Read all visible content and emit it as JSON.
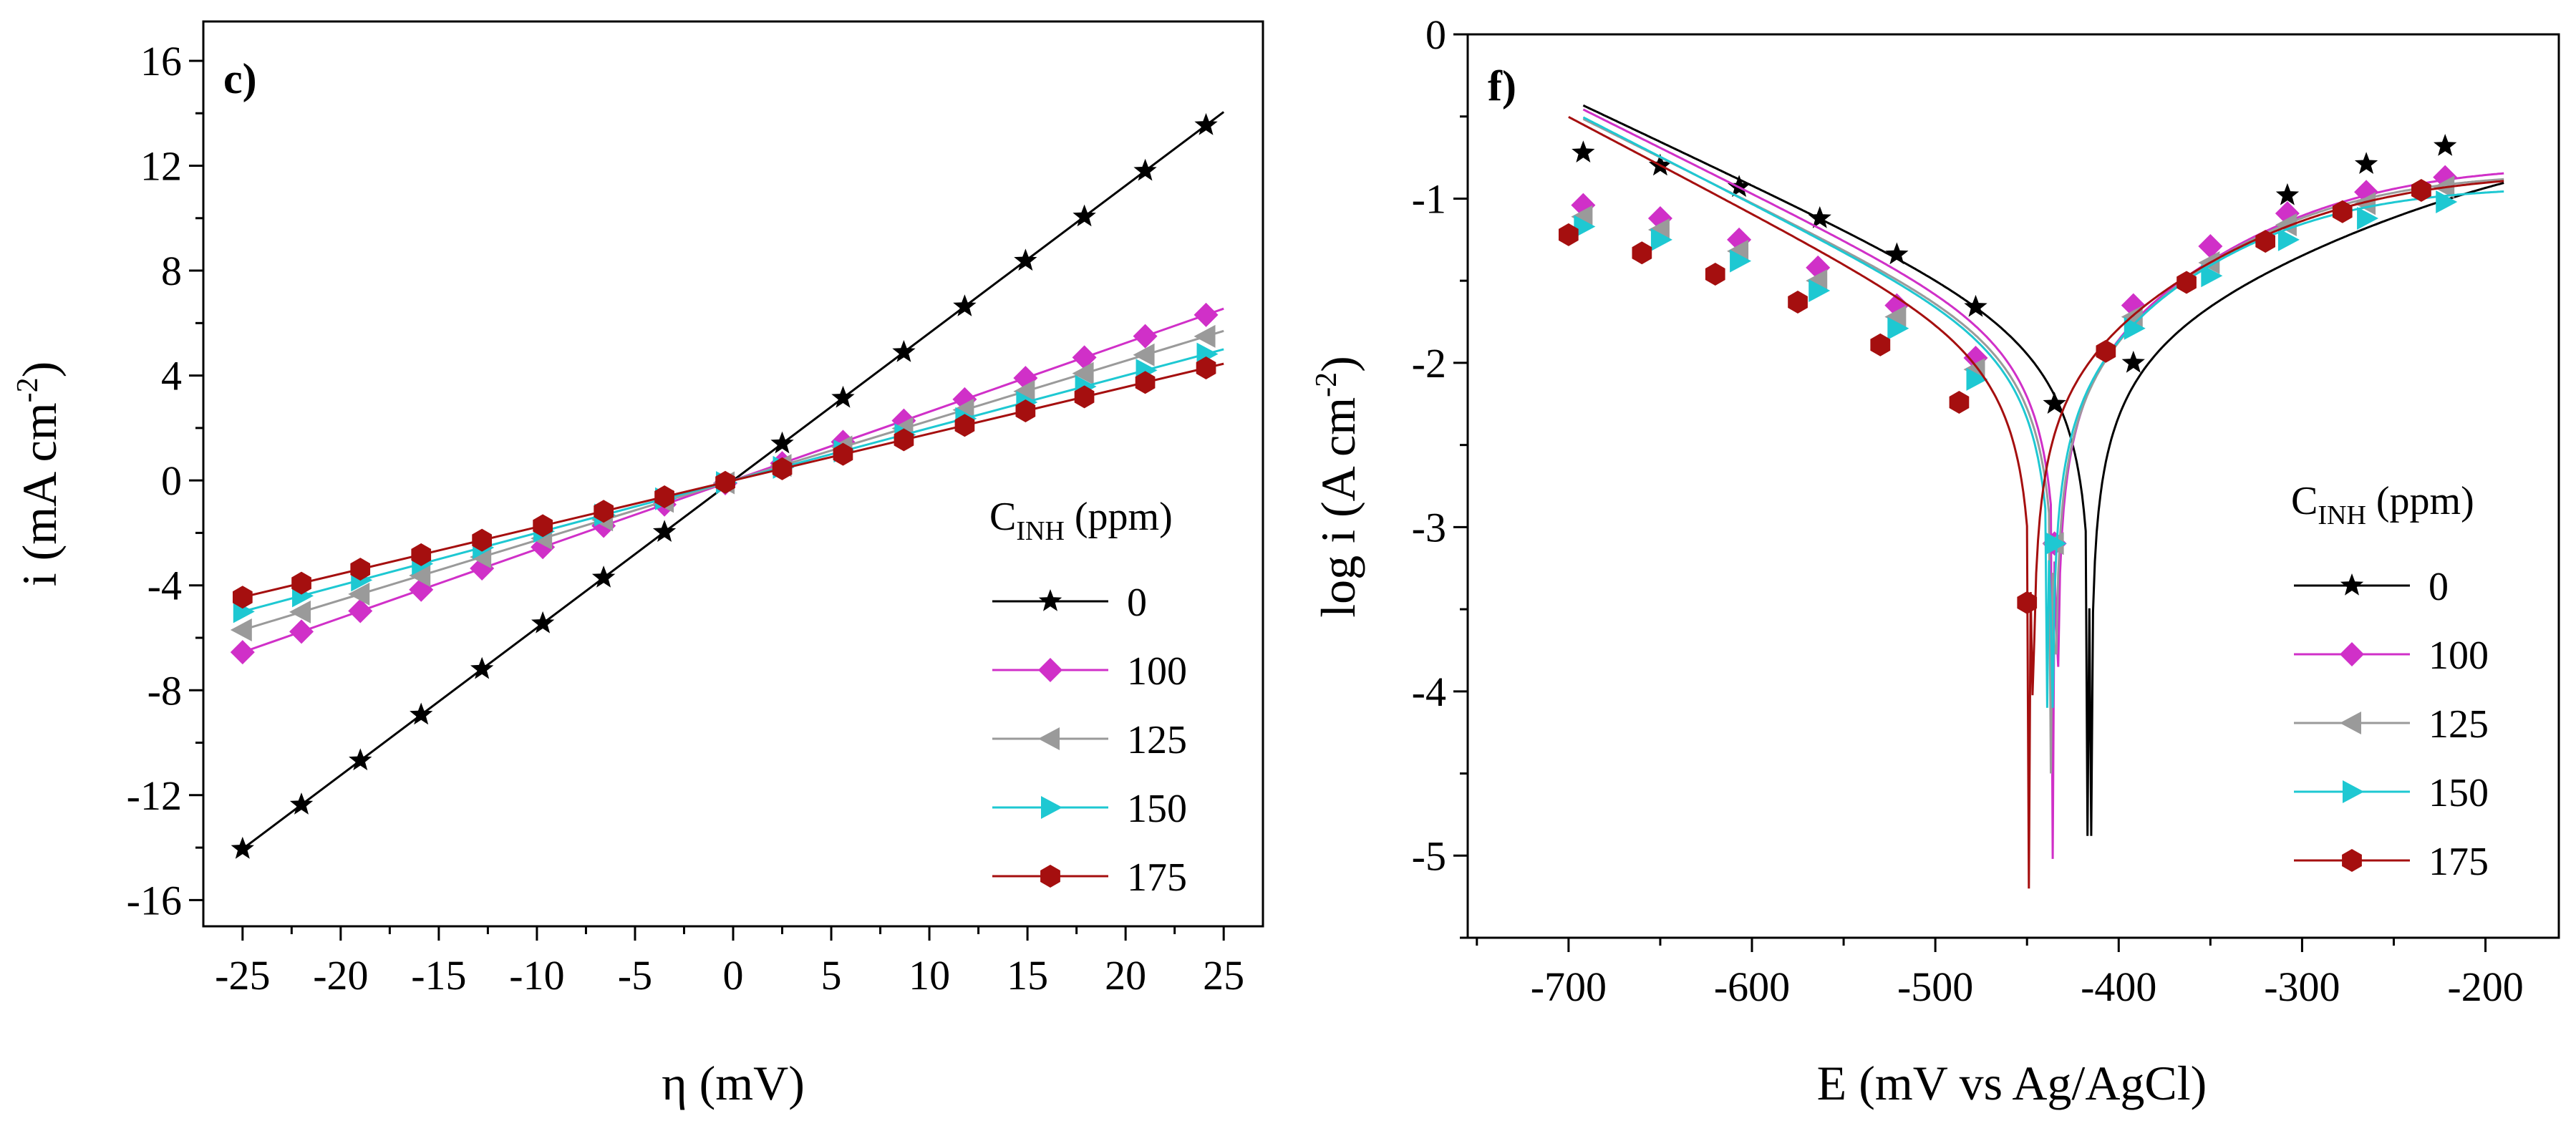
{
  "figure": {
    "panels": [
      {
        "label": "c)",
        "ylabel": "i (mA cm<sup>-2</sup>)",
        "ylabel_parts": {
          "main": "i (mA cm",
          "sup": "-2",
          "close": ")"
        },
        "xlabel": "η (mV)",
        "legend_title_parts": {
          "main": "C",
          "sub": "INH",
          "rest": " (ppm)"
        }
      },
      {
        "label": "f)",
        "ylabel_parts": {
          "main": "log  i  (A cm",
          "sup": "-2",
          "close": ")"
        },
        "xlabel": "E (mV vs Ag/AgCl)",
        "legend_title_parts": {
          "main": "C",
          "sub": "INH",
          "rest": " (ppm)"
        }
      }
    ]
  },
  "chart_data": [
    {
      "type": "line",
      "panel": "c)",
      "xlabel": "η (mV)",
      "ylabel": "i (mA cm-2)",
      "xlim": [
        -27,
        27
      ],
      "ylim": [
        -17,
        17.5
      ],
      "xticks": [
        -25,
        -20,
        -15,
        -10,
        -5,
        0,
        5,
        10,
        15,
        20,
        25
      ],
      "yticks": [
        -16,
        -12,
        -8,
        -4,
        0,
        4,
        8,
        12,
        16
      ],
      "legend_position": "bottom-right",
      "series": [
        {
          "name": "0",
          "color": "#000000",
          "marker": "star",
          "slope": 0.562,
          "x_range": [
            -25,
            25
          ],
          "marker_x": [
            -25,
            -22,
            -19,
            -15.9,
            -12.8,
            -9.7,
            -6.6,
            -3.5,
            2.5,
            5.6,
            8.7,
            11.8,
            14.9,
            17.9,
            21,
            24.1
          ]
        },
        {
          "name": "100",
          "color": "#d030c8",
          "marker": "diamond",
          "slope": 0.262,
          "x_range": [
            -25,
            25
          ],
          "marker_x": [
            -25,
            -22,
            -19,
            -15.9,
            -12.8,
            -9.7,
            -6.6,
            -3.5,
            -0.4,
            2.5,
            5.6,
            8.7,
            11.8,
            14.9,
            17.9,
            21,
            24.1
          ]
        },
        {
          "name": "125",
          "color": "#9a9a9a",
          "marker": "triangle-left",
          "slope": 0.228,
          "x_range": [
            -25,
            25
          ],
          "marker_x": [
            -25,
            -22,
            -19,
            -15.9,
            -12.8,
            -9.7,
            -6.6,
            -3.5,
            -0.4,
            2.5,
            5.6,
            8.7,
            11.8,
            14.9,
            17.9,
            21,
            24.1
          ]
        },
        {
          "name": "150",
          "color": "#1ec8d2",
          "marker": "triangle-right",
          "slope": 0.2,
          "x_range": [
            -25,
            25
          ],
          "marker_x": [
            -25,
            -22,
            -19,
            -15.9,
            -12.8,
            -9.7,
            -6.6,
            -3.5,
            -0.4,
            2.5,
            5.6,
            8.7,
            11.8,
            14.9,
            17.9,
            21,
            24.1
          ]
        },
        {
          "name": "175",
          "color": "#a50f0f",
          "marker": "hexagon",
          "slope": 0.178,
          "x_range": [
            -25,
            25
          ],
          "marker_x": [
            -25,
            -22,
            -19,
            -15.9,
            -12.8,
            -9.7,
            -6.6,
            -3.5,
            -0.4,
            2.5,
            5.6,
            8.7,
            11.8,
            14.9,
            17.9,
            21,
            24.1
          ]
        }
      ]
    },
    {
      "type": "line",
      "panel": "f)",
      "xlabel": "E (mV vs Ag/AgCl)",
      "ylabel": "log i (A cm-2)",
      "xlim": [
        -755,
        -160
      ],
      "ylim": [
        -5.5,
        0
      ],
      "xticks": [
        -700,
        -600,
        -500,
        -400,
        -300,
        -200
      ],
      "yticks": [
        0,
        -1,
        -2,
        -3,
        -4,
        -5
      ],
      "legend_position": "bottom-right",
      "series": [
        {
          "name": "0",
          "color": "#000000",
          "marker": "star",
          "curve": {
            "ecorr": -417,
            "icorr": 0.0132,
            "ba": 180,
            "bc": 190,
            "ilim": 0.262,
            "min": -4.88,
            "x_range": [
              -692,
              -190
            ]
          },
          "markers": [
            [
              -692,
              -0.72
            ],
            [
              -650,
              -0.8
            ],
            [
              -607,
              -0.93
            ],
            [
              -563,
              -1.12
            ],
            [
              -521,
              -1.34
            ],
            [
              -478,
              -1.66
            ],
            [
              -435,
              -2.25
            ],
            [
              -392,
              -2.0
            ],
            [
              -308,
              -0.98
            ],
            [
              -265,
              -0.79
            ],
            [
              -222,
              -0.68
            ]
          ]
        },
        {
          "name": "100",
          "color": "#d030c8",
          "marker": "diamond",
          "curve": {
            "ecorr": -436,
            "icorr": 0.0132,
            "ba": 125,
            "bc": 180,
            "ilim": 0.162,
            "min": -5.02,
            "x_range": [
              -692,
              -190
            ]
          },
          "markers": [
            [
              -692,
              -1.04
            ],
            [
              -650,
              -1.12
            ],
            [
              -607,
              -1.25
            ],
            [
              -564,
              -1.42
            ],
            [
              -521,
              -1.65
            ],
            [
              -478,
              -1.97
            ],
            [
              -435,
              -3.1
            ],
            [
              -392,
              -1.65
            ],
            [
              -350,
              -1.29
            ],
            [
              -308,
              -1.09
            ],
            [
              -265,
              -0.96
            ],
            [
              -222,
              -0.87
            ]
          ]
        },
        {
          "name": "125",
          "color": "#9a9a9a",
          "marker": "triangle-left",
          "curve": {
            "ecorr": -437,
            "icorr": 0.0117,
            "ba": 118,
            "bc": 180,
            "ilim": 0.145,
            "min": -4.5,
            "x_range": [
              -692,
              -190
            ]
          },
          "markers": [
            [
              -692,
              -1.11
            ],
            [
              -650,
              -1.19
            ],
            [
              -607,
              -1.32
            ],
            [
              -564,
              -1.5
            ],
            [
              -521,
              -1.72
            ],
            [
              -478,
              -2.04
            ],
            [
              -435,
              -3.1
            ],
            [
              -392,
              -1.72
            ],
            [
              -350,
              -1.39
            ],
            [
              -308,
              -1.16
            ],
            [
              -265,
              -1.03
            ],
            [
              -222,
              -0.93
            ]
          ]
        },
        {
          "name": "150",
          "color": "#1ec8d2",
          "marker": "triangle-right",
          "curve": {
            "ecorr": -439,
            "icorr": 0.0112,
            "ba": 115,
            "bc": 175,
            "ilim": 0.119,
            "min": -4.1,
            "x_range": [
              -692,
              -190
            ]
          },
          "markers": [
            [
              -692,
              -1.17
            ],
            [
              -650,
              -1.25
            ],
            [
              -607,
              -1.38
            ],
            [
              -564,
              -1.56
            ],
            [
              -521,
              -1.79
            ],
            [
              -478,
              -2.1
            ],
            [
              -435,
              -3.1
            ],
            [
              -392,
              -1.79
            ],
            [
              -350,
              -1.47
            ],
            [
              -308,
              -1.25
            ],
            [
              -265,
              -1.12
            ],
            [
              -222,
              -1.02
            ]
          ]
        },
        {
          "name": "175",
          "color": "#a50f0f",
          "marker": "hexagon",
          "curve": {
            "ecorr": -449,
            "icorr": 0.0105,
            "ba": 128,
            "bc": 170,
            "ilim": 0.145,
            "min": -5.2,
            "x_range": [
              -700,
              -190
            ]
          },
          "markers": [
            [
              -700,
              -1.22
            ],
            [
              -660,
              -1.33
            ],
            [
              -620,
              -1.46
            ],
            [
              -575,
              -1.63
            ],
            [
              -530,
              -1.89
            ],
            [
              -487,
              -2.24
            ],
            [
              -450,
              -3.46
            ],
            [
              -407,
              -1.93
            ],
            [
              -363,
              -1.51
            ],
            [
              -320,
              -1.26
            ],
            [
              -278,
              -1.08
            ],
            [
              -235,
              -0.95
            ]
          ]
        }
      ]
    }
  ]
}
